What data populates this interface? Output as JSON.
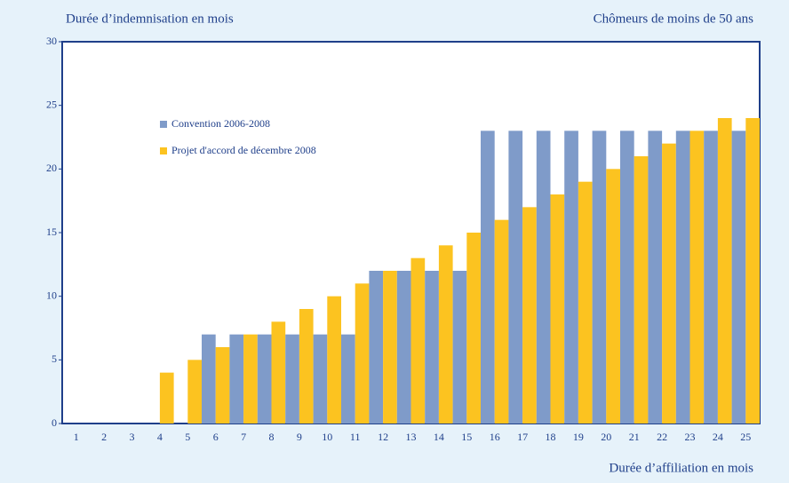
{
  "chart_data": {
    "type": "bar",
    "title": "Durée d’indemnisation en mois",
    "subtitle": "Chômeurs de moins de 50 ans",
    "x_label": "Durée d’affiliation en mois",
    "categories": [
      "1",
      "2",
      "3",
      "4",
      "5",
      "6",
      "7",
      "8",
      "9",
      "10",
      "11",
      "12",
      "13",
      "14",
      "15",
      "16",
      "17",
      "18",
      "19",
      "20",
      "21",
      "22",
      "23",
      "24",
      "25"
    ],
    "series": [
      {
        "name": "Convention 2006-2008",
        "color": "#7f9bc9",
        "values": [
          0,
          0,
          0,
          0,
          0,
          7,
          7,
          7,
          7,
          7,
          7,
          12,
          12,
          12,
          12,
          23,
          23,
          23,
          23,
          23,
          23,
          23,
          23,
          23,
          23
        ]
      },
      {
        "name": "Projet d'accord de décembre 2008",
        "color": "#fcc320",
        "values": [
          0,
          0,
          0,
          4,
          5,
          6,
          7,
          8,
          9,
          10,
          11,
          12,
          13,
          14,
          15,
          16,
          17,
          18,
          19,
          20,
          21,
          22,
          23,
          24,
          24
        ]
      }
    ],
    "ylim": [
      0,
      30
    ],
    "yticks": [
      0,
      5,
      10,
      15,
      20,
      25,
      30
    ],
    "grid": false,
    "legend": "upper left"
  }
}
